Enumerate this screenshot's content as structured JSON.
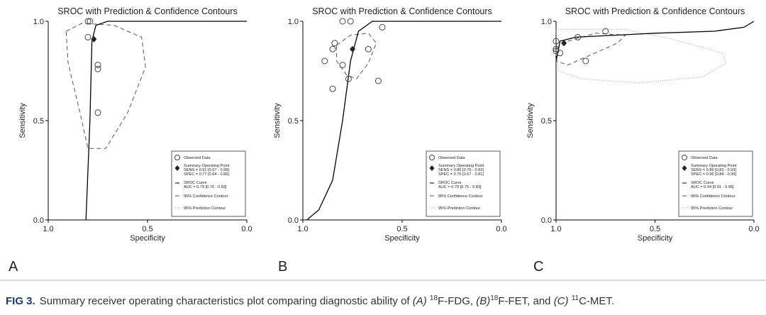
{
  "chart_data": [
    {
      "type": "scatter",
      "panel_label": "A",
      "title": "SROC with Prediction & Confidence Contours",
      "xlabel": "Specificity",
      "ylabel": "Sensitivity",
      "xlim": [
        1,
        0
      ],
      "ylim": [
        0,
        1
      ],
      "xticks": [
        {
          "value": 1,
          "label": "1.0"
        },
        {
          "value": 0.5,
          "label": "0.5"
        },
        {
          "value": 0,
          "label": "0.0"
        }
      ],
      "yticks": [
        {
          "value": 0,
          "label": "0.0"
        },
        {
          "value": 0.5,
          "label": "0.5"
        },
        {
          "value": 1,
          "label": "1.0"
        }
      ],
      "points": {
        "x": [
          0.8,
          0.79,
          0.8,
          0.75,
          0.75,
          0.75
        ],
        "y": [
          1.0,
          1.0,
          0.92,
          0.78,
          0.76,
          0.54
        ]
      },
      "summary": {
        "x": 0.77,
        "y": 0.91
      },
      "sroc": {
        "x": [
          0.81,
          0.79,
          0.78,
          0.76,
          0.7,
          0
        ],
        "y": [
          0,
          0.5,
          0.9,
          0.98,
          1.0,
          1.0
        ]
      },
      "confidence_contour": {
        "x": [
          0.91,
          0.83,
          0.67,
          0.53,
          0.51,
          0.6,
          0.71,
          0.8,
          0.84,
          0.9
        ],
        "y": [
          0.95,
          0.99,
          0.98,
          0.92,
          0.77,
          0.54,
          0.36,
          0.36,
          0.54,
          0.79
        ]
      },
      "legend": {
        "observed": "Observed Data",
        "summary": "Summary Operating Point",
        "sens": "SENS = 0.91 [0.67 - 0.98]",
        "spec": "SPEC = 0.77 [0.64 - 0.86]",
        "curve": "SROC Curve",
        "auc": "AUC = 0.79 [0.76 - 0.83]",
        "confidence": "95% Confidence Contour",
        "prediction": "95% Prediction Contour"
      }
    },
    {
      "type": "scatter",
      "panel_label": "B",
      "title": "SROC with Prediction & Confidence Contours",
      "xlabel": "Specificity",
      "ylabel": "Sensitivity",
      "xlim": [
        1,
        0
      ],
      "ylim": [
        0,
        1
      ],
      "xticks": [
        {
          "value": 1,
          "label": "1.0"
        },
        {
          "value": 0.5,
          "label": "0.5"
        },
        {
          "value": 0,
          "label": "0.0"
        }
      ],
      "yticks": [
        {
          "value": 0,
          "label": "0.0"
        },
        {
          "value": 0.5,
          "label": "0.5"
        },
        {
          "value": 1,
          "label": "1.0"
        }
      ],
      "points": {
        "x": [
          0.89,
          0.85,
          0.85,
          0.84,
          0.8,
          0.76,
          0.8,
          0.77,
          0.67,
          0.62,
          0.6
        ],
        "y": [
          0.8,
          0.66,
          0.86,
          0.89,
          1.0,
          1.0,
          0.78,
          0.71,
          0.86,
          0.7,
          0.97
        ]
      },
      "summary": {
        "x": 0.75,
        "y": 0.86
      },
      "sroc": {
        "x": [
          0.98,
          0.92,
          0.85,
          0.8,
          0.76,
          0.72,
          0.65,
          0
        ],
        "y": [
          0,
          0.05,
          0.2,
          0.5,
          0.8,
          0.95,
          1.0,
          1.0
        ]
      },
      "confidence_contour": {
        "x": [
          0.83,
          0.76,
          0.67,
          0.63,
          0.67,
          0.73,
          0.78,
          0.83
        ],
        "y": [
          0.88,
          0.93,
          0.94,
          0.89,
          0.79,
          0.71,
          0.73,
          0.8
        ]
      },
      "legend": {
        "observed": "Observed Data",
        "summary": "Summary Operating Point",
        "sens": "SENS = 0.86 [0.76 - 0.92]",
        "spec": "SPEC = 0.75 [0.67 - 0.81]",
        "curve": "SROC Curve",
        "auc": "AUC = 0.79 [0.75 - 0.83]",
        "confidence": "95% Confidence Contour",
        "prediction": "95% Prediction Contour"
      }
    },
    {
      "type": "scatter",
      "panel_label": "C",
      "title": "SROC with Prediction & Confidence Contours",
      "xlabel": "Specificity",
      "ylabel": "Sensitivity",
      "xlim": [
        1,
        0
      ],
      "ylim": [
        0,
        1
      ],
      "xticks": [
        {
          "value": 1,
          "label": "1.0"
        },
        {
          "value": 0.5,
          "label": "0.5"
        },
        {
          "value": 0,
          "label": "0.0"
        }
      ],
      "yticks": [
        {
          "value": 0,
          "label": "0.0"
        },
        {
          "value": 0.5,
          "label": "0.5"
        },
        {
          "value": 1,
          "label": "1.0"
        }
      ],
      "points": {
        "x": [
          1.0,
          1.0,
          1.0,
          0.98,
          0.89,
          0.75,
          0.85
        ],
        "y": [
          0.9,
          0.86,
          0.85,
          0.84,
          0.92,
          0.95,
          0.8
        ]
      },
      "summary": {
        "x": 0.96,
        "y": 0.89
      },
      "sroc": {
        "x": [
          1.0,
          0.98,
          0.9,
          0.5,
          0.2,
          0.05,
          0
        ],
        "y": [
          0.8,
          0.9,
          0.92,
          0.94,
          0.95,
          0.97,
          1.0
        ]
      },
      "confidence_contour": {
        "x": [
          1.0,
          0.94,
          0.8,
          0.65,
          0.69,
          0.94,
          1.0
        ],
        "y": [
          0.86,
          0.9,
          0.94,
          0.93,
          0.89,
          0.78,
          0.8
        ]
      },
      "prediction_contour": {
        "x": [
          1.0,
          0.66,
          0.41,
          0.16,
          0.14,
          0.26,
          0.58,
          0.87,
          0.99
        ],
        "y": [
          0.96,
          0.96,
          0.91,
          0.84,
          0.79,
          0.72,
          0.69,
          0.71,
          0.75
        ]
      },
      "legend": {
        "observed": "Observed Data",
        "summary": "Summary Operating Point",
        "sens": "SENS = 0.89 [0.83 - 0.93]",
        "spec": "SPEC = 0.96 [0.84 - 0.99]",
        "curve": "SROC Curve",
        "auc": "AUC = 0.94 [0.91 - 0.96]",
        "confidence": "95% Confidence Contour",
        "prediction": "95% Prediction Contour"
      }
    }
  ],
  "caption": {
    "label": "FIG 3.",
    "parts": [
      "Summary receiver operating characteristics plot comparing diagnostic ability of ",
      "(A)",
      "18",
      "F-FDG, ",
      "(B)",
      "18",
      "F-FET, and ",
      "(C)",
      "11",
      "C-MET."
    ]
  }
}
